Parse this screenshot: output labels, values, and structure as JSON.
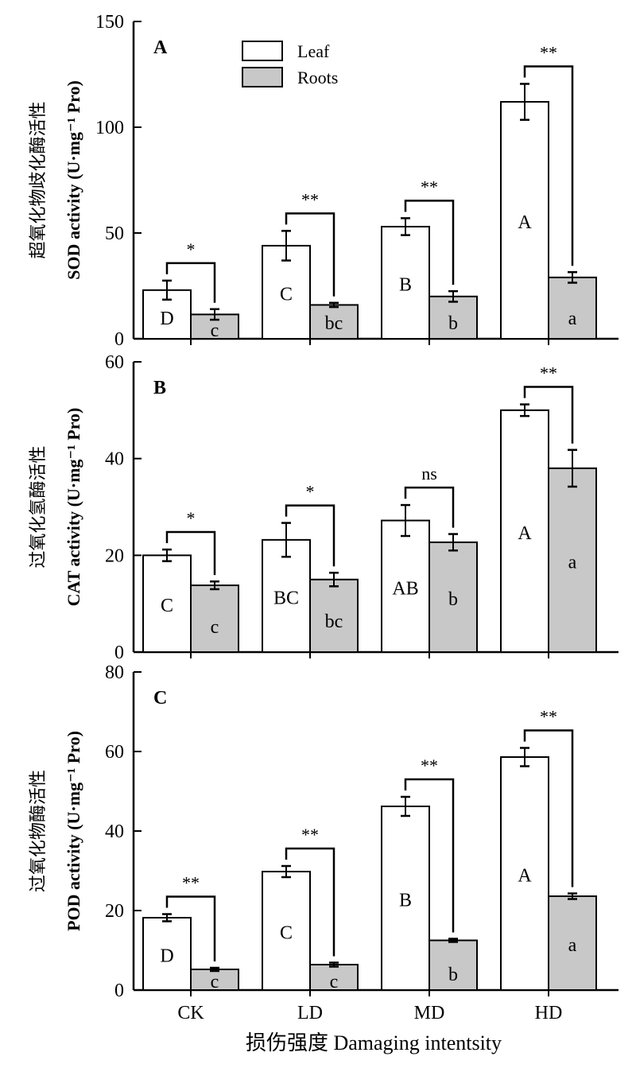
{
  "colors": {
    "leaf": "#ffffff",
    "roots": "#c8c8c8",
    "stroke": "#000000"
  },
  "legend": {
    "position": "top-center",
    "items": [
      "Leaf",
      "Roots"
    ]
  },
  "x_axis": {
    "label_cn": "损伤强度",
    "label_en": "Damaging intentsity"
  },
  "chart_data": [
    {
      "type": "bar",
      "panel": "A",
      "categories": [
        "CK",
        "LD",
        "MD",
        "HD"
      ],
      "ylim": [
        0,
        150
      ],
      "yticks": [
        0,
        50,
        100,
        150
      ],
      "ylabel_cn": "超氧化物歧化酶活性",
      "ylabel_en": "SOD activity (U·mg⁻¹ Pro)",
      "series": [
        {
          "name": "Leaf",
          "values": [
            23,
            44,
            53,
            112
          ],
          "errors": [
            4.5,
            7,
            4,
            8.5
          ],
          "letters": [
            "D",
            "C",
            "B",
            "A"
          ]
        },
        {
          "name": "Roots",
          "values": [
            11.5,
            16,
            20,
            29
          ],
          "errors": [
            2.5,
            1,
            2.5,
            2.5
          ],
          "letters": [
            "c",
            "bc",
            "b",
            "a"
          ]
        }
      ],
      "significance": [
        "*",
        "**",
        "**",
        "**"
      ]
    },
    {
      "type": "bar",
      "panel": "B",
      "categories": [
        "CK",
        "LD",
        "MD",
        "HD"
      ],
      "ylim": [
        0,
        60
      ],
      "yticks": [
        0,
        20,
        40,
        60
      ],
      "ylabel_cn": "过氧化氢酶活性",
      "ylabel_en": "CAT activity (U·mg⁻¹ Pro)",
      "series": [
        {
          "name": "Leaf",
          "values": [
            20,
            23.2,
            27.2,
            50
          ],
          "errors": [
            1.2,
            3.5,
            3.2,
            1.2
          ],
          "letters": [
            "C",
            "BC",
            "AB",
            "A"
          ]
        },
        {
          "name": "Roots",
          "values": [
            13.8,
            15,
            22.7,
            38
          ],
          "errors": [
            0.8,
            1.4,
            1.7,
            3.8
          ],
          "letters": [
            "c",
            "bc",
            "b",
            "a"
          ]
        }
      ],
      "significance": [
        "*",
        "*",
        "ns",
        "**"
      ]
    },
    {
      "type": "bar",
      "panel": "C",
      "categories": [
        "CK",
        "LD",
        "MD",
        "HD"
      ],
      "ylim": [
        0,
        80
      ],
      "yticks": [
        0,
        20,
        40,
        60,
        80
      ],
      "ylabel_cn": "过氧化物酶活性",
      "ylabel_en": "POD activity (U·mg⁻¹ Pro)",
      "series": [
        {
          "name": "Leaf",
          "values": [
            18.2,
            29.8,
            46.2,
            58.6
          ],
          "errors": [
            0.9,
            1.4,
            2.4,
            2.3
          ],
          "letters": [
            "D",
            "C",
            "B",
            "A"
          ]
        },
        {
          "name": "Roots",
          "values": [
            5.2,
            6.4,
            12.5,
            23.6
          ],
          "errors": [
            0.4,
            0.5,
            0.4,
            0.7
          ],
          "letters": [
            "c",
            "c",
            "b",
            "a"
          ]
        }
      ],
      "significance": [
        "**",
        "**",
        "**",
        "**"
      ]
    }
  ]
}
